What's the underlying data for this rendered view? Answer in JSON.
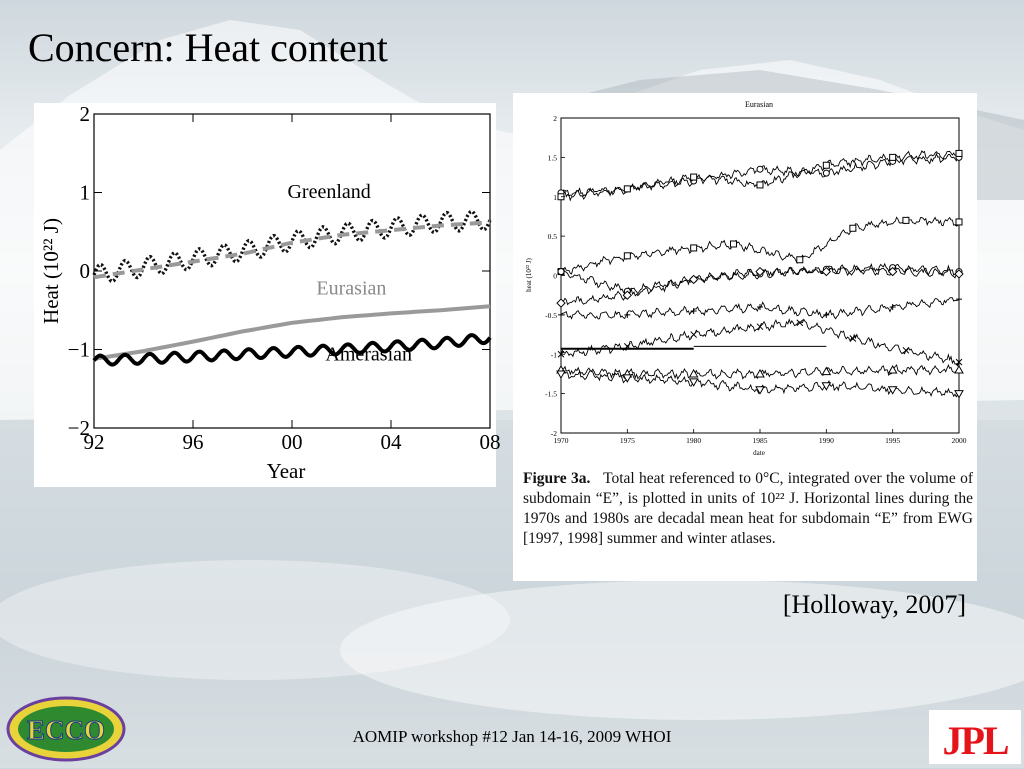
{
  "slide": {
    "title": "Concern: Heat content",
    "citation": "[Holloway, 2007]",
    "footer": "AOMIP workshop #12 Jan 14-16, 2009 WHOI",
    "logo_left_text": "ECCO",
    "logo_right_text": "JPL",
    "colors": {
      "jpl_red": "#e5141b",
      "ecco_green": "#2f8a2f",
      "ecco_blue": "#1b3f8a"
    }
  },
  "chart_data": [
    {
      "type": "line",
      "xlabel": "Year",
      "ylabel": "Heat (10²² J)",
      "xlim": [
        1992,
        2008
      ],
      "ylim": [
        -2,
        2
      ],
      "xticks": [
        {
          "value": 1992,
          "label": "92"
        },
        {
          "value": 1996,
          "label": "96"
        },
        {
          "value": 2000,
          "label": "00"
        },
        {
          "value": 2004,
          "label": "04"
        },
        {
          "value": 2008,
          "label": "08"
        }
      ],
      "yticks": [
        {
          "value": 2,
          "label": "2"
        },
        {
          "value": 1,
          "label": "1"
        },
        {
          "value": 0,
          "label": "0"
        },
        {
          "value": -1,
          "label": "−1"
        },
        {
          "value": -2,
          "label": "−2"
        }
      ],
      "grid": false,
      "annotations": [
        {
          "text": "Greenland",
          "x": 2001.5,
          "y": 0.93
        },
        {
          "text": "Eurasian",
          "x": 2002.4,
          "y": -0.3
        },
        {
          "text": "Amerasian",
          "x": 2003.1,
          "y": -1.14
        }
      ],
      "series": [
        {
          "label": "Greenland",
          "style": "dotted",
          "color": "#111111",
          "seasonal_amplitude": 0.12,
          "x": [
            1992,
            1994,
            1996,
            1998,
            2000,
            2002,
            2004,
            2006,
            2008
          ],
          "y": [
            -0.05,
            0.05,
            0.15,
            0.25,
            0.38,
            0.48,
            0.55,
            0.62,
            0.65
          ]
        },
        {
          "label": "Greenland (smoothed)",
          "style": "dashed",
          "color": "#999999",
          "x": [
            1992,
            1994,
            1996,
            1998,
            2000,
            2002,
            2004,
            2006,
            2008
          ],
          "y": [
            -0.08,
            0.02,
            0.12,
            0.22,
            0.36,
            0.46,
            0.52,
            0.58,
            0.62
          ]
        },
        {
          "label": "Eurasian",
          "style": "solid",
          "color": "#9a9a9a",
          "x": [
            1992,
            1994,
            1996,
            1998,
            2000,
            2002,
            2004,
            2006,
            2008
          ],
          "y": [
            -1.12,
            -1.02,
            -0.9,
            -0.77,
            -0.66,
            -0.59,
            -0.54,
            -0.5,
            -0.45
          ]
        },
        {
          "label": "Amerasian",
          "style": "solid",
          "color": "#000000",
          "seasonal_amplitude": 0.06,
          "x": [
            1992,
            1994,
            1996,
            1998,
            2000,
            2002,
            2004,
            2006,
            2008
          ],
          "y": [
            -1.14,
            -1.12,
            -1.09,
            -1.06,
            -1.03,
            -1.0,
            -0.96,
            -0.92,
            -0.85
          ]
        }
      ]
    },
    {
      "type": "line",
      "title": "Eurasian",
      "xlabel": "date",
      "ylabel": "heat (10²² J)",
      "xlim": [
        1970,
        2000
      ],
      "ylim": [
        -2,
        2
      ],
      "xticks": [
        1970,
        1975,
        1980,
        1985,
        1990,
        1995,
        2000
      ],
      "yticks": [
        {
          "value": 2,
          "label": "2"
        },
        {
          "value": 1.5,
          "label": "1.5"
        },
        {
          "value": 1,
          "label": "1"
        },
        {
          "value": 0.5,
          "label": "0.5"
        },
        {
          "value": 0,
          "label": "0"
        },
        {
          "value": -0.5,
          "label": "-0.5"
        },
        {
          "value": -1,
          "label": "-1"
        },
        {
          "value": -1.5,
          "label": "-1.5"
        },
        {
          "value": -2,
          "label": "-2"
        }
      ],
      "grid": false,
      "caption": {
        "label": "Figure 3a.",
        "text": "Total heat referenced to 0°C, integrated over the volume of subdomain “E”, is plotted in units of 10²² J. Horizontal lines during the 1970s and 1980s are decadal mean heat for subdomain “E” from EWG [1997, 1998] summer and winter atlases."
      },
      "series": [
        {
          "marker": "circle",
          "x": [
            1970,
            1975,
            1980,
            1985,
            1990,
            1995,
            2000
          ],
          "y": [
            1.05,
            1.1,
            1.2,
            1.35,
            1.3,
            1.45,
            1.5
          ]
        },
        {
          "marker": "square",
          "x": [
            1970,
            1975,
            1980,
            1985,
            1990,
            1995,
            2000
          ],
          "y": [
            1.0,
            1.1,
            1.25,
            1.15,
            1.4,
            1.5,
            1.55
          ]
        },
        {
          "marker": "square",
          "x": [
            1970,
            1975,
            1980,
            1983,
            1988,
            1992,
            1996,
            2000
          ],
          "y": [
            0.05,
            0.25,
            0.35,
            0.4,
            0.2,
            0.6,
            0.7,
            0.68
          ]
        },
        {
          "marker": "circle",
          "x": [
            1970,
            1975,
            1980,
            1985,
            1990,
            1995,
            2000
          ],
          "y": [
            0.05,
            -0.2,
            -0.05,
            0.02,
            0.08,
            0.1,
            0.05
          ]
        },
        {
          "marker": "diamond",
          "x": [
            1970,
            1975,
            1980,
            1985,
            1990,
            1995,
            2000
          ],
          "y": [
            -0.35,
            -0.25,
            -0.05,
            0.05,
            0.05,
            0.05,
            0.02
          ]
        },
        {
          "marker": "plus",
          "x": [
            1970,
            1975,
            1980,
            1985,
            1990,
            1995,
            2000
          ],
          "y": [
            -0.5,
            -0.5,
            -0.45,
            -0.4,
            -0.5,
            -0.4,
            -0.3
          ]
        },
        {
          "marker": "x",
          "x": [
            1970,
            1975,
            1980,
            1985,
            1988,
            1992,
            1996,
            2000
          ],
          "y": [
            -1.0,
            -0.9,
            -0.75,
            -0.65,
            -0.6,
            -0.8,
            -0.95,
            -1.1
          ]
        },
        {
          "marker": "triangle",
          "x": [
            1970,
            1975,
            1980,
            1985,
            1990,
            1995,
            2000
          ],
          "y": [
            -1.2,
            -1.25,
            -1.25,
            -1.25,
            -1.22,
            -1.2,
            -1.2
          ]
        },
        {
          "marker": "triangle-down",
          "x": [
            1970,
            1975,
            1980,
            1985,
            1990,
            1995,
            2000
          ],
          "y": [
            -1.25,
            -1.3,
            -1.35,
            -1.45,
            -1.4,
            -1.45,
            -1.5
          ]
        },
        {
          "style": "decadal-mean",
          "x": [
            1970,
            1980
          ],
          "y": [
            -0.93,
            -0.93
          ]
        },
        {
          "style": "decadal-mean",
          "x": [
            1980,
            1990
          ],
          "y": [
            -0.9,
            -0.9
          ]
        }
      ]
    }
  ]
}
